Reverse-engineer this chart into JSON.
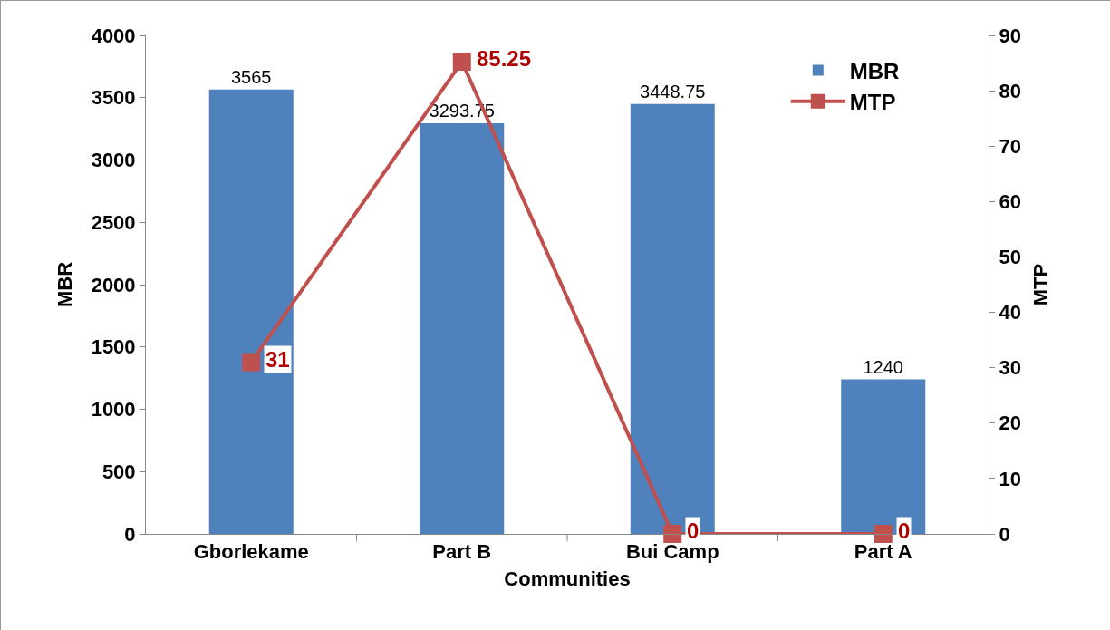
{
  "chart_data": {
    "type": "bar",
    "xlabel": "Communities",
    "ylabel": "MBR",
    "y2label": "MTP",
    "categories": [
      "Gborlekame",
      "Part B",
      "Bui Camp",
      "Part A"
    ],
    "series": [
      {
        "name": "MBR",
        "color": "#4f81bd",
        "values": [
          3565,
          3293.75,
          3448.75,
          1240
        ]
      },
      {
        "name": "MTP",
        "type": "line",
        "axis": "y2",
        "color": "#c0504d",
        "values": [
          31,
          85.25,
          0,
          0
        ]
      }
    ],
    "ylim": [
      0,
      4000
    ],
    "yticks": [
      0,
      500,
      1000,
      1500,
      2000,
      2500,
      3000,
      3500,
      4000
    ],
    "y2lim": [
      0,
      90
    ],
    "y2ticks": [
      0,
      10,
      20,
      30,
      40,
      50,
      60,
      70,
      80,
      90
    ],
    "data_labels": true,
    "legend": "top right",
    "grid": false,
    "marker": "square",
    "line_style": "solid"
  }
}
